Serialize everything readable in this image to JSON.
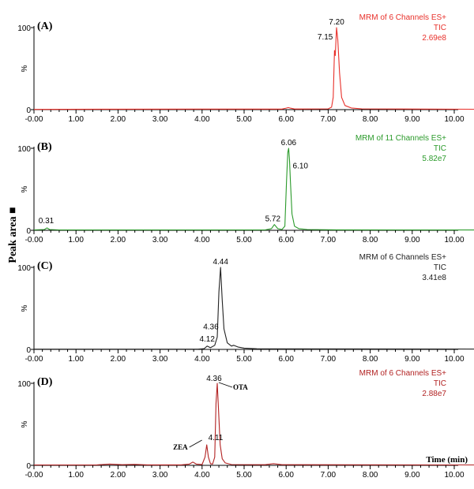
{
  "figure": {
    "y_axis_label": "Peak area ■",
    "x_axis_label": "Time (min)"
  },
  "chart_data": [
    {
      "type": "line",
      "panel_label": "(A)",
      "color": "#e8302a",
      "info": [
        "MRM of 6 Channels ES+",
        "TIC",
        "2.69e8"
      ],
      "ylabel": "%",
      "xlim": [
        0,
        10.5
      ],
      "ylim": [
        0,
        100
      ],
      "x_ticks": [
        "-0.00",
        "1.00",
        "2.00",
        "3.00",
        "4.00",
        "5.00",
        "6.00",
        "7.00",
        "8.00",
        "9.00",
        "10.00"
      ],
      "y_ticks": [
        "0",
        "100"
      ],
      "series": [
        {
          "name": "TIC",
          "x": [
            0,
            2.0,
            5.5,
            5.9,
            6.0,
            6.05,
            6.1,
            6.2,
            7.0,
            7.08,
            7.12,
            7.15,
            7.17,
            7.2,
            7.23,
            7.27,
            7.32,
            7.4,
            7.55,
            7.8,
            10.5
          ],
          "y": [
            0.3,
            0.6,
            0.7,
            0.7,
            1.8,
            2.5,
            1.8,
            0.8,
            1.0,
            3,
            15,
            72,
            66,
            100,
            85,
            45,
            15,
            5,
            2,
            1,
            0.5
          ]
        }
      ],
      "peak_labels": [
        {
          "x": 7.15,
          "y": 72,
          "text": "7.15"
        },
        {
          "x": 7.2,
          "y": 100,
          "text": "7.20"
        }
      ]
    },
    {
      "type": "line",
      "panel_label": "(B)",
      "color": "#2a9a2a",
      "info": [
        "MRM of 11 Channels ES+",
        "TIC",
        "5.82e7"
      ],
      "ylabel": "%",
      "xlim": [
        0,
        10.5
      ],
      "ylim": [
        0,
        100
      ],
      "x_ticks": [
        "-0.00",
        "1.00",
        "2.00",
        "3.00",
        "4.00",
        "5.00",
        "6.00",
        "7.00",
        "8.00",
        "9.00",
        "10.00"
      ],
      "y_ticks": [
        "0",
        "100"
      ],
      "series": [
        {
          "name": "TIC",
          "x": [
            0,
            0.25,
            0.31,
            0.37,
            0.6,
            5.5,
            5.65,
            5.72,
            5.8,
            5.9,
            5.97,
            6.01,
            6.04,
            6.06,
            6.08,
            6.1,
            6.14,
            6.2,
            6.3,
            6.5,
            7.2,
            10.5
          ],
          "y": [
            0.5,
            1,
            3,
            1,
            0.5,
            0.5,
            2,
            7,
            2,
            1,
            5,
            60,
            95,
            100,
            85,
            62,
            20,
            5,
            2,
            1,
            0.6,
            0.4
          ]
        }
      ],
      "peak_labels": [
        {
          "x": 0.31,
          "y": 3,
          "text": "0.31"
        },
        {
          "x": 5.72,
          "y": 7,
          "text": "5.72"
        },
        {
          "x": 6.06,
          "y": 100,
          "text": "6.06"
        },
        {
          "x": 6.1,
          "y": 62,
          "text": "6.10"
        }
      ]
    },
    {
      "type": "line",
      "panel_label": "(C)",
      "color": "#222222",
      "info": [
        "MRM of 6 Channels ES+",
        "TIC",
        "3.41e8"
      ],
      "ylabel": "%",
      "xlim": [
        0,
        10.5
      ],
      "ylim": [
        0,
        100
      ],
      "x_ticks": [
        "-0.00",
        "1.00",
        "2.00",
        "3.00",
        "4.00",
        "5.00",
        "6.00",
        "7.00",
        "8.00",
        "9.00",
        "10.00"
      ],
      "y_ticks": [
        "0",
        "100"
      ],
      "series": [
        {
          "name": "TIC",
          "x": [
            0,
            3.9,
            4.05,
            4.12,
            4.2,
            4.3,
            4.36,
            4.4,
            4.44,
            4.48,
            4.52,
            4.6,
            4.7,
            4.75,
            4.85,
            5.0,
            5.3,
            10.5
          ],
          "y": [
            0.3,
            0.3,
            1,
            4,
            2,
            5,
            15,
            70,
            100,
            60,
            25,
            8,
            4,
            5,
            3,
            1.5,
            0.8,
            0.4
          ]
        }
      ],
      "peak_labels": [
        {
          "x": 4.12,
          "y": 4,
          "text": "4.12"
        },
        {
          "x": 4.36,
          "y": 15,
          "text": "4.36"
        },
        {
          "x": 4.44,
          "y": 100,
          "text": "4.44"
        }
      ]
    },
    {
      "type": "line",
      "panel_label": "(D)",
      "color": "#b22222",
      "info": [
        "MRM of 6 Channels ES+",
        "TIC",
        "2.88e7"
      ],
      "ylabel": "%",
      "xlabel": "Time (min)",
      "xlim": [
        0,
        10.5
      ],
      "ylim": [
        0,
        100
      ],
      "x_ticks": [
        "-0.00",
        "1.00",
        "2.00",
        "3.00",
        "4.00",
        "5.00",
        "6.00",
        "7.00",
        "8.00",
        "9.00",
        "10.00"
      ],
      "y_ticks": [
        "0",
        "100"
      ],
      "series": [
        {
          "name": "TIC",
          "x": [
            0,
            1.5,
            1.8,
            2.1,
            2.4,
            2.7,
            3.5,
            3.7,
            3.78,
            3.86,
            4.0,
            4.07,
            4.11,
            4.15,
            4.2,
            4.25,
            4.3,
            4.33,
            4.36,
            4.39,
            4.43,
            4.48,
            4.55,
            4.7,
            5.5,
            5.7,
            5.9,
            10.5
          ],
          "y": [
            0.5,
            0.6,
            1.5,
            0.8,
            1.2,
            0.6,
            0.6,
            1.5,
            4,
            1.5,
            1,
            10,
            25,
            10,
            2,
            1.5,
            10,
            75,
            100,
            70,
            25,
            8,
            3,
            1,
            0.8,
            2,
            0.8,
            0.5
          ]
        }
      ],
      "peak_labels": [
        {
          "x": 4.11,
          "y": 25,
          "text": "4.11"
        },
        {
          "x": 4.36,
          "y": 100,
          "text": "4.36"
        }
      ],
      "annotations": [
        {
          "text": "ZEA",
          "target_x": 4.11,
          "target_y": 25
        },
        {
          "text": "OTA",
          "target_x": 4.36,
          "target_y": 100
        }
      ]
    }
  ]
}
